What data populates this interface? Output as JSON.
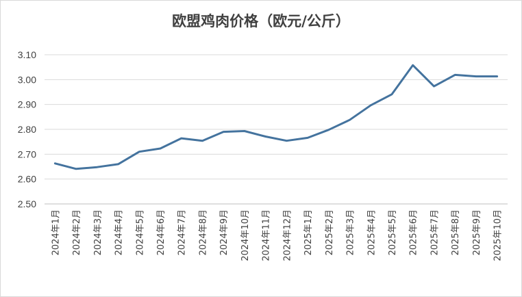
{
  "chart_data": {
    "type": "line",
    "title": "欧盟鸡肉价格（欧元/公斤）",
    "xlabel": "",
    "ylabel": "",
    "ylim": [
      2.5,
      3.1
    ],
    "yticks": [
      "2.50",
      "2.60",
      "2.70",
      "2.80",
      "2.90",
      "3.00",
      "3.10"
    ],
    "grid": true,
    "legend": "none",
    "line_color": "#44739e",
    "categories": [
      "2024年1月",
      "2024年2月",
      "2024年3月",
      "2024年4月",
      "2024年5月",
      "2024年6月",
      "2024年7月",
      "2024年8月",
      "2024年9月",
      "2024年10月",
      "2024年11月",
      "2024年12月",
      "2025年1月",
      "2025年2月",
      "2025年3月",
      "2025年4月",
      "2025年5月",
      "2025年6月",
      "2025年7月",
      "2025年8月",
      "2025年9月",
      "2025年10月"
    ],
    "series": [
      {
        "values": [
          2.663,
          2.641,
          2.648,
          2.66,
          2.71,
          2.723,
          2.764,
          2.754,
          2.79,
          2.793,
          2.771,
          2.754,
          2.766,
          2.798,
          2.838,
          2.897,
          2.941,
          3.058,
          2.973,
          3.019,
          3.013,
          3.013
        ]
      }
    ]
  }
}
